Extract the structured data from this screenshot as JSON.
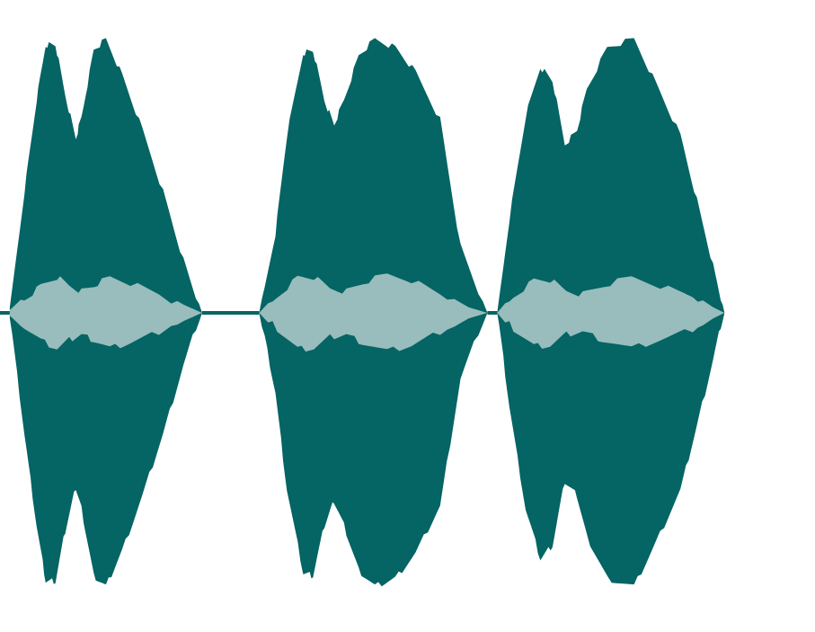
{
  "waveform": {
    "colors": {
      "background": "#ffffff",
      "peak": "#056464",
      "rms": "#99bcbc",
      "silence_line": "#056464"
    },
    "amplitude_range": [
      -1,
      1
    ],
    "time_range": [
      0,
      1
    ],
    "segments": [
      {
        "peak": [
          [
            0.012,
            0.02
          ],
          [
            0.03,
            0.45
          ],
          [
            0.045,
            0.78
          ],
          [
            0.056,
            0.98
          ],
          [
            0.068,
            0.98
          ],
          [
            0.08,
            0.8
          ],
          [
            0.093,
            0.64
          ],
          [
            0.1,
            0.72
          ],
          [
            0.115,
            0.96
          ],
          [
            0.13,
            1.0
          ],
          [
            0.15,
            0.87
          ],
          [
            0.175,
            0.67
          ],
          [
            0.2,
            0.45
          ],
          [
            0.225,
            0.2
          ],
          [
            0.248,
            0.0
          ]
        ],
        "rms": [
          [
            0.012,
            0.01
          ],
          [
            0.03,
            0.06
          ],
          [
            0.05,
            0.11
          ],
          [
            0.07,
            0.14
          ],
          [
            0.085,
            0.11
          ],
          [
            0.1,
            0.09
          ],
          [
            0.115,
            0.11
          ],
          [
            0.135,
            0.14
          ],
          [
            0.16,
            0.12
          ],
          [
            0.195,
            0.08
          ],
          [
            0.225,
            0.03
          ],
          [
            0.248,
            0.0
          ]
        ]
      },
      {
        "peak": [
          [
            0.318,
            0.0
          ],
          [
            0.338,
            0.3
          ],
          [
            0.352,
            0.65
          ],
          [
            0.372,
            0.95
          ],
          [
            0.384,
            0.96
          ],
          [
            0.398,
            0.78
          ],
          [
            0.41,
            0.69
          ],
          [
            0.422,
            0.78
          ],
          [
            0.44,
            0.94
          ],
          [
            0.46,
            1.0
          ],
          [
            0.485,
            0.97
          ],
          [
            0.51,
            0.88
          ],
          [
            0.54,
            0.71
          ],
          [
            0.565,
            0.25
          ],
          [
            0.598,
            0.0
          ]
        ],
        "rms": [
          [
            0.318,
            0.0
          ],
          [
            0.34,
            0.07
          ],
          [
            0.365,
            0.14
          ],
          [
            0.385,
            0.14
          ],
          [
            0.405,
            0.1
          ],
          [
            0.425,
            0.09
          ],
          [
            0.445,
            0.12
          ],
          [
            0.475,
            0.15
          ],
          [
            0.505,
            0.13
          ],
          [
            0.54,
            0.08
          ],
          [
            0.575,
            0.02
          ],
          [
            0.598,
            0.0
          ]
        ]
      },
      {
        "peak": [
          [
            0.61,
            0.0
          ],
          [
            0.625,
            0.35
          ],
          [
            0.645,
            0.72
          ],
          [
            0.663,
            0.9
          ],
          [
            0.678,
            0.85
          ],
          [
            0.693,
            0.62
          ],
          [
            0.708,
            0.67
          ],
          [
            0.72,
            0.82
          ],
          [
            0.745,
            0.97
          ],
          [
            0.778,
            1.0
          ],
          [
            0.805,
            0.84
          ],
          [
            0.835,
            0.65
          ],
          [
            0.855,
            0.42
          ],
          [
            0.875,
            0.18
          ],
          [
            0.889,
            0.0
          ]
        ],
        "rms": [
          [
            0.61,
            0.0
          ],
          [
            0.63,
            0.07
          ],
          [
            0.655,
            0.13
          ],
          [
            0.675,
            0.13
          ],
          [
            0.695,
            0.09
          ],
          [
            0.715,
            0.08
          ],
          [
            0.74,
            0.11
          ],
          [
            0.775,
            0.14
          ],
          [
            0.81,
            0.11
          ],
          [
            0.85,
            0.07
          ],
          [
            0.875,
            0.02
          ],
          [
            0.889,
            0.0
          ]
        ]
      }
    ],
    "silence_lines": [
      [
        0.0,
        0.012
      ],
      [
        0.248,
        0.318
      ],
      [
        0.598,
        0.61
      ]
    ]
  }
}
